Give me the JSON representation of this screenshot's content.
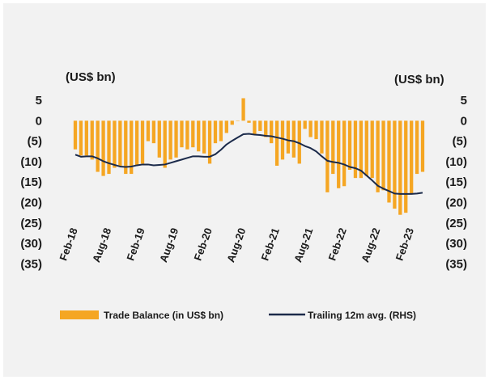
{
  "chart_data": {
    "type": "bar",
    "left_unit_label": "(US$ bn)",
    "right_unit_label": "(US$ bn)",
    "y_ticks_left": [
      "5",
      "0",
      "(5)",
      "(10)",
      "(15)",
      "(20)",
      "(25)",
      "(30)",
      "(35)"
    ],
    "y_ticks_right": [
      "5",
      "0",
      "(5)",
      "(10)",
      "(15)",
      "(20)",
      "(25)",
      "(30)",
      "(35)"
    ],
    "ylim": [
      -35,
      5
    ],
    "x_tick_labels": [
      "Feb-18",
      "Aug-18",
      "Feb-19",
      "Aug-19",
      "Feb-20",
      "Aug-20",
      "Feb-21",
      "Aug-21",
      "Feb-22",
      "Aug-22",
      "Feb-23"
    ],
    "x_tick_indices": [
      0,
      6,
      12,
      18,
      24,
      30,
      36,
      42,
      48,
      54,
      60
    ],
    "series": [
      {
        "name": "Trade Balance (in US$ bn)",
        "type": "bar",
        "color": "#f5a623",
        "values": [
          -7,
          -8.5,
          -8.5,
          -9.5,
          -12.5,
          -13.5,
          -13,
          -11.5,
          -11,
          -13,
          -13,
          -11,
          -10.5,
          -5,
          -5.5,
          -9,
          -11.5,
          -9.5,
          -9,
          -6.5,
          -7,
          -6.5,
          -7.5,
          -8,
          -10.5,
          -5.5,
          -5,
          -3,
          -1,
          0,
          5.5,
          -0.5,
          -3.5,
          -2.5,
          -4,
          -5.5,
          -11,
          -9.5,
          -8,
          -9,
          -10.5,
          -2,
          -4,
          -4.5,
          -8,
          -17.5,
          -13,
          -16.5,
          -16,
          -12,
          -14,
          -14,
          -13.5,
          -14,
          -17.5,
          -17,
          -20,
          -21.5,
          -23,
          -22.5,
          -18,
          -13,
          -12.5
        ]
      },
      {
        "name": "Trailing 12m avg. (RHS)",
        "type": "line",
        "color": "#1b2a4a",
        "values": [
          -8.3,
          -8.8,
          -8.7,
          -8.7,
          -9.2,
          -9.9,
          -10.4,
          -10.8,
          -11.2,
          -11.3,
          -11.2,
          -10.9,
          -10.7,
          -10.7,
          -10.9,
          -10.8,
          -10.7,
          -10.3,
          -9.9,
          -9.5,
          -9.1,
          -8.7,
          -8.7,
          -8.8,
          -8.8,
          -8.2,
          -7.1,
          -5.8,
          -4.9,
          -4.1,
          -3.3,
          -3.2,
          -3.4,
          -3.5,
          -3.7,
          -3.8,
          -4.1,
          -4.4,
          -4.8,
          -5.0,
          -5.5,
          -6.2,
          -6.7,
          -7.5,
          -8.7,
          -9.8,
          -10.1,
          -10.3,
          -10.7,
          -11.3,
          -11.6,
          -12.2,
          -13.4,
          -14.6,
          -15.9,
          -16.6,
          -17.2,
          -17.8,
          -17.9,
          -17.9,
          -17.9,
          -17.8,
          -17.6
        ]
      }
    ],
    "legend_position": "bottom",
    "grid": false
  }
}
